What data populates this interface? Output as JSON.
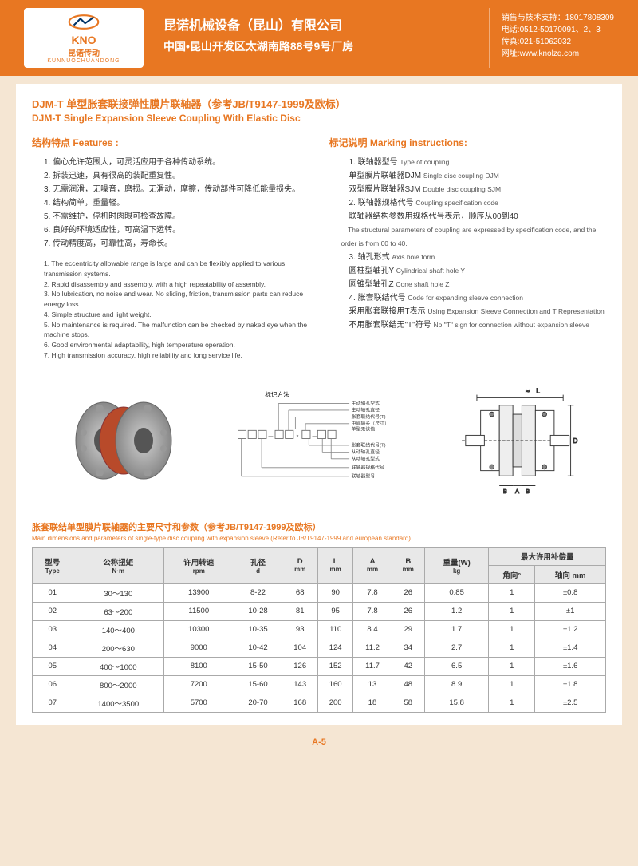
{
  "header": {
    "logo_text": "KNO",
    "logo_cn": "昆诺传动",
    "logo_py": "KUNNUOCHUANDONG",
    "company_cn": "昆诺机械设备（昆山）有限公司",
    "company_addr": "中国•昆山开发区太湖南路88号9号厂房",
    "contact1": "销售与技术支持：18017808309",
    "contact2": "电话:0512-50170091、2、3",
    "contact3": "传真:021-51062032",
    "contact4": "网址:www.knolzq.com"
  },
  "title": {
    "cn": "DJM-T 单型胀套联接弹性膜片联轴器（参考JB/T9147-1999及欧标）",
    "en": "DJM-T Single Expansion Sleeve Coupling With Elastic Disc"
  },
  "features": {
    "title": "结构特点 Features :",
    "cn": [
      "1. 偏心允许范围大，可灵活应用于各种传动系统。",
      "2. 拆装迅速，具有很高的装配重复性。",
      "3. 无需润滑，无噪音，磨损。无滑动，摩擦，传动部件可降低能量损失。",
      "4. 结构简单，重量轻。",
      "5. 不需维护，停机时肉眼可检查故障。",
      "6. 良好的环境适应性，可高温下运转。",
      "7. 传动精度高，可靠性高，寿命长。"
    ],
    "en": [
      "1. The eccentricity allowable range is large and can be flexibly applied to various transmission systems.",
      "2. Rapid disassembly and assembly, with a high repeatability of assembly.",
      "3. No lubrication, no noise and wear. No sliding, friction, transmission parts can reduce energy loss.",
      "4. Simple structure and light weight.",
      "5. No maintenance is required. The malfunction can be checked by naked eye when the machine stops.",
      "6. Good environmental adaptability, high temperature operation.",
      "7. High transmission accuracy, high reliability and long service life."
    ]
  },
  "marking": {
    "title": "标记说明 Marking instructions:",
    "lines": [
      {
        "t": "　1. 联轴器型号 ",
        "s": "Type of coupling"
      },
      {
        "t": "　单型膜片联轴器DJM ",
        "s": "Single disc coupling DJM"
      },
      {
        "t": "　双型膜片联轴器SJM ",
        "s": "Double disc coupling SJM"
      },
      {
        "t": "　2. 联轴器规格代号 ",
        "s": "Coupling specification code"
      },
      {
        "t": "　联轴器结构参数用规格代号表示，顺序从00到40",
        "s": ""
      },
      {
        "t": "",
        "s": "　The structural parameters of coupling are expressed by specification code, and the order is from 00 to 40."
      },
      {
        "t": "　3. 轴孔形式 ",
        "s": "Axis hole form"
      },
      {
        "t": "　圆柱型轴孔Y ",
        "s": "Cylindrical shaft hole Y"
      },
      {
        "t": "　圆锥型轴孔Z ",
        "s": "Cone shaft hole Z"
      },
      {
        "t": "　4. 胀套联结代号 ",
        "s": "Code for expanding sleeve connection"
      },
      {
        "t": "　采用胀套联接用T表示 ",
        "s": "Using Expansion Sleeve Connection and T Representation"
      },
      {
        "t": "　不用胀套联结无\"T\"符号 ",
        "s": "No \"T\" sign for connection without expansion sleeve"
      }
    ]
  },
  "diagram_label": "标记方法",
  "schematic_labels": [
    "主动轴孔型式",
    "主动轴孔直径",
    "胀套联结代号(T)",
    "中间轴长（尺寸）单型无该值",
    "胀套联结代号(T)",
    "从动轴孔直径",
    "从动轴孔型式",
    "联轴器规格代号",
    "联轴器型号"
  ],
  "dim_labels": {
    "L": "L",
    "D": "D",
    "A": "A",
    "B": "B",
    "approx": "≈"
  },
  "table": {
    "title_cn": "胀套联结单型膜片联轴器的主要尺寸和参数（参考JB/T9147-1999及欧标）",
    "title_en": "Main dimensions and parameters of single-type disc coupling with expansion sleeve (Refer to JB/T9147-1999 and european standard)",
    "headers": [
      {
        "cn": "型号",
        "en": "Type"
      },
      {
        "cn": "公称扭矩",
        "en": "N·m"
      },
      {
        "cn": "许用转速",
        "en": "rpm"
      },
      {
        "cn": "孔径",
        "en": "d"
      },
      {
        "cn": "D",
        "en": "mm"
      },
      {
        "cn": "L",
        "en": "mm"
      },
      {
        "cn": "A",
        "en": "mm"
      },
      {
        "cn": "B",
        "en": "mm"
      },
      {
        "cn": "重量(W)",
        "en": "kg"
      }
    ],
    "comp_header": "最大许用补偿量",
    "comp_sub": [
      {
        "cn": "角向°"
      },
      {
        "cn": "轴向 mm"
      }
    ],
    "rows": [
      [
        "01",
        "30～130",
        "13900",
        "8-22",
        "68",
        "90",
        "7.8",
        "26",
        "0.85",
        "1",
        "±0.8"
      ],
      [
        "02",
        "63～200",
        "11500",
        "10-28",
        "81",
        "95",
        "7.8",
        "26",
        "1.2",
        "1",
        "±1"
      ],
      [
        "03",
        "140～400",
        "10300",
        "10-35",
        "93",
        "110",
        "8.4",
        "29",
        "1.7",
        "1",
        "±1.2"
      ],
      [
        "04",
        "200～630",
        "9000",
        "10-42",
        "104",
        "124",
        "11.2",
        "34",
        "2.7",
        "1",
        "±1.4"
      ],
      [
        "05",
        "400～1000",
        "8100",
        "15-50",
        "126",
        "152",
        "11.7",
        "42",
        "6.5",
        "1",
        "±1.6"
      ],
      [
        "06",
        "800～2000",
        "7200",
        "15-60",
        "143",
        "160",
        "13",
        "48",
        "8.9",
        "1",
        "±1.8"
      ],
      [
        "07",
        "1400～3500",
        "5700",
        "20-70",
        "168",
        "200",
        "18",
        "58",
        "15.8",
        "1",
        "±2.5"
      ]
    ]
  },
  "colors": {
    "accent": "#e87722",
    "page_bg": "#f5e6d3",
    "border": "#aaaaaa",
    "th_bg": "#e8e8e8"
  },
  "footer": "A-5"
}
